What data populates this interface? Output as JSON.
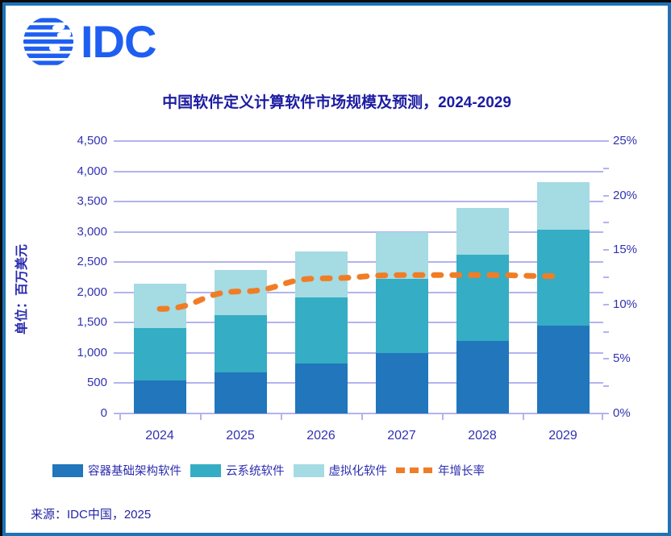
{
  "logo": {
    "text": "IDC",
    "color": "#1e5ff2",
    "icon": "globe-stripes"
  },
  "title": "中国软件定义计算软件市场规模及预测，2024-2029",
  "left_axis": {
    "title": "单位：百万美元",
    "tick_labels": [
      "0",
      "500",
      "1,000",
      "1,500",
      "2,000",
      "2,500",
      "3,000",
      "3,500",
      "4,000",
      "4,500"
    ],
    "min": 0,
    "max": 4500,
    "step": 500
  },
  "right_axis": {
    "tick_labels": [
      "0%",
      "5%",
      "10%",
      "15%",
      "20%",
      "25%"
    ],
    "min": 0,
    "max": 25,
    "step": 5,
    "minor_step": 2.5
  },
  "chart_data": {
    "type": "bar",
    "subtype": "stacked-bars-with-line",
    "title": "中国软件定义计算软件市场规模及预测，2024-2029",
    "ylabel": "单位：百万美元",
    "ylim": [
      0,
      4500
    ],
    "y2lim_pct": [
      0,
      25
    ],
    "grid": "horizontal",
    "legend_position": "bottom",
    "categories": [
      "2024",
      "2025",
      "2026",
      "2027",
      "2028",
      "2029"
    ],
    "series": [
      {
        "name": "容器基础架构软件",
        "type": "bar",
        "color": "#2176bc",
        "values": [
          540,
          680,
          830,
          1000,
          1200,
          1450
        ]
      },
      {
        "name": "云系统软件",
        "type": "bar",
        "color": "#35adc4",
        "values": [
          865,
          950,
          1090,
          1230,
          1420,
          1580
        ]
      },
      {
        "name": "虚拟化软件",
        "type": "bar",
        "color": "#a5dbe3",
        "values": [
          735,
          740,
          750,
          770,
          770,
          790
        ]
      },
      {
        "name": "年增长率",
        "type": "line",
        "axis": "right",
        "color": "#f07d26",
        "style": "dashed",
        "values_pct": [
          9.6,
          11.2,
          12.4,
          12.7,
          12.7,
          12.6
        ]
      }
    ],
    "stack_totals": [
      2140,
      2370,
      2670,
      3000,
      3390,
      3820
    ]
  },
  "colors": {
    "frame_border": "#1e72b6",
    "grid": "#b3b3ee",
    "axis_text": "#3232b2",
    "title_text": "#1c1ca2"
  },
  "source": "来源：IDC中国，2025"
}
